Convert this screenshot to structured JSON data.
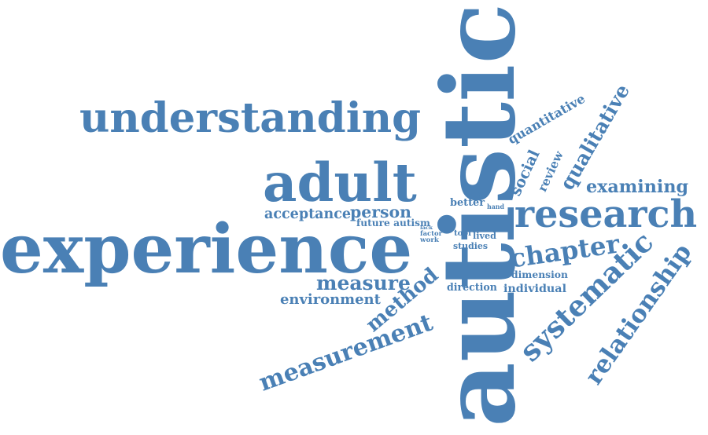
{
  "colors": {
    "word": "#4a80b5",
    "background": "#ffffff"
  },
  "words": [
    "autistic",
    "experience",
    "understanding",
    "adult",
    "research",
    "relationship",
    "systematic",
    "measurement",
    "chapter",
    "qualitative",
    "examining",
    "measure",
    "method",
    "environment",
    "acceptance",
    "person",
    "social",
    "review",
    "quantitative",
    "individual",
    "dimension",
    "direction",
    "better",
    "studies",
    "lived",
    "current",
    "future autism",
    "lack",
    "factor",
    "work",
    "tool",
    "hand",
    "skill"
  ]
}
